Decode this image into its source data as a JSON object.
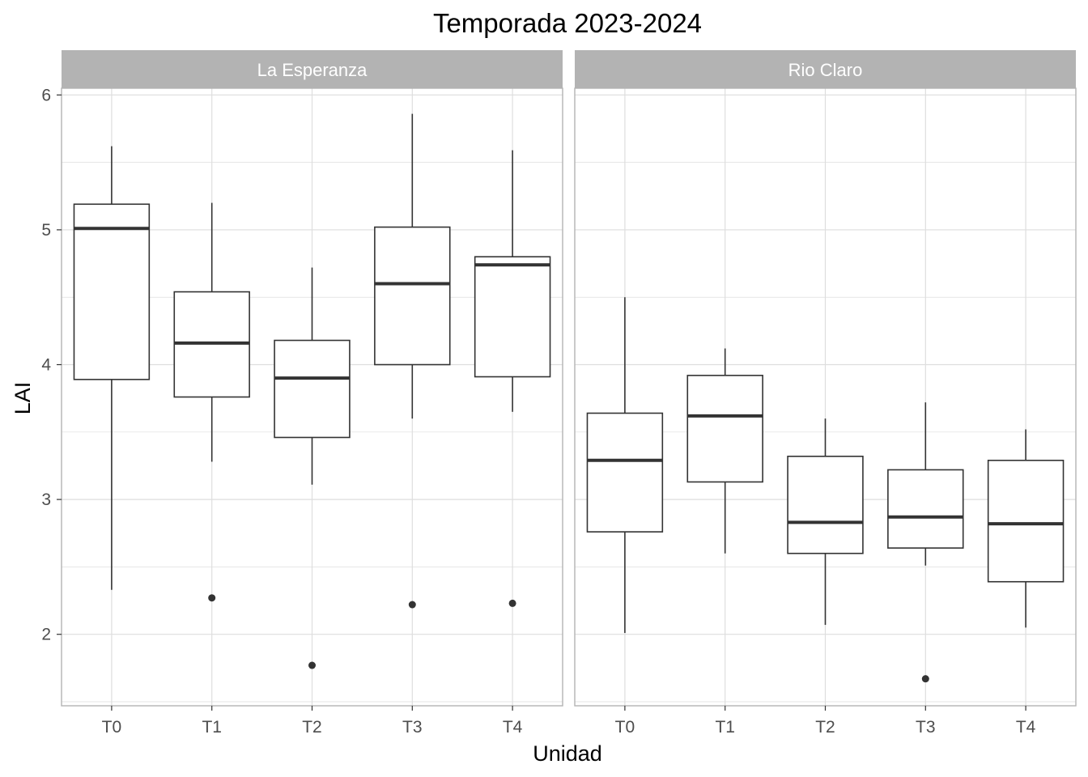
{
  "chart_data": {
    "type": "box",
    "title": "Temporada 2023-2024",
    "xlabel": "Unidad",
    "ylabel": "LAI",
    "ylim": [
      1.47,
      6.05
    ],
    "yticks": [
      2,
      3,
      4,
      5,
      6
    ],
    "grid": true,
    "categories": [
      "T0",
      "T1",
      "T2",
      "T3",
      "T4"
    ],
    "panels": [
      {
        "name": "La Esperanza",
        "boxes": [
          {
            "category": "T0",
            "whisker_low": 2.33,
            "q1": 3.89,
            "median": 5.01,
            "q3": 5.19,
            "whisker_high": 5.62,
            "outliers": []
          },
          {
            "category": "T1",
            "whisker_low": 3.28,
            "q1": 3.76,
            "median": 4.16,
            "q3": 4.54,
            "whisker_high": 5.2,
            "outliers": [
              2.27
            ]
          },
          {
            "category": "T2",
            "whisker_low": 3.11,
            "q1": 3.46,
            "median": 3.9,
            "q3": 4.18,
            "whisker_high": 4.72,
            "outliers": [
              1.77
            ]
          },
          {
            "category": "T3",
            "whisker_low": 3.6,
            "q1": 4.0,
            "median": 4.6,
            "q3": 5.02,
            "whisker_high": 5.86,
            "outliers": [
              2.22
            ]
          },
          {
            "category": "T4",
            "whisker_low": 3.65,
            "q1": 3.91,
            "median": 4.74,
            "q3": 4.8,
            "whisker_high": 5.59,
            "outliers": [
              2.23
            ]
          }
        ]
      },
      {
        "name": "Rio Claro",
        "boxes": [
          {
            "category": "T0",
            "whisker_low": 2.01,
            "q1": 2.76,
            "median": 3.29,
            "q3": 3.64,
            "whisker_high": 4.5,
            "outliers": []
          },
          {
            "category": "T1",
            "whisker_low": 2.6,
            "q1": 3.13,
            "median": 3.62,
            "q3": 3.92,
            "whisker_high": 4.12,
            "outliers": []
          },
          {
            "category": "T2",
            "whisker_low": 2.07,
            "q1": 2.6,
            "median": 2.83,
            "q3": 3.32,
            "whisker_high": 3.6,
            "outliers": []
          },
          {
            "category": "T3",
            "whisker_low": 2.51,
            "q1": 2.64,
            "median": 2.87,
            "q3": 3.22,
            "whisker_high": 3.72,
            "outliers": [
              1.67
            ]
          },
          {
            "category": "T4",
            "whisker_low": 2.05,
            "q1": 2.39,
            "median": 2.82,
            "q3": 3.29,
            "whisker_high": 3.52,
            "outliers": []
          }
        ]
      }
    ],
    "colors": {
      "strip": "#b3b3b3",
      "box_line": "#333333",
      "median": "#333333",
      "grid": "#dedede",
      "border": "#b3b3b3"
    }
  }
}
